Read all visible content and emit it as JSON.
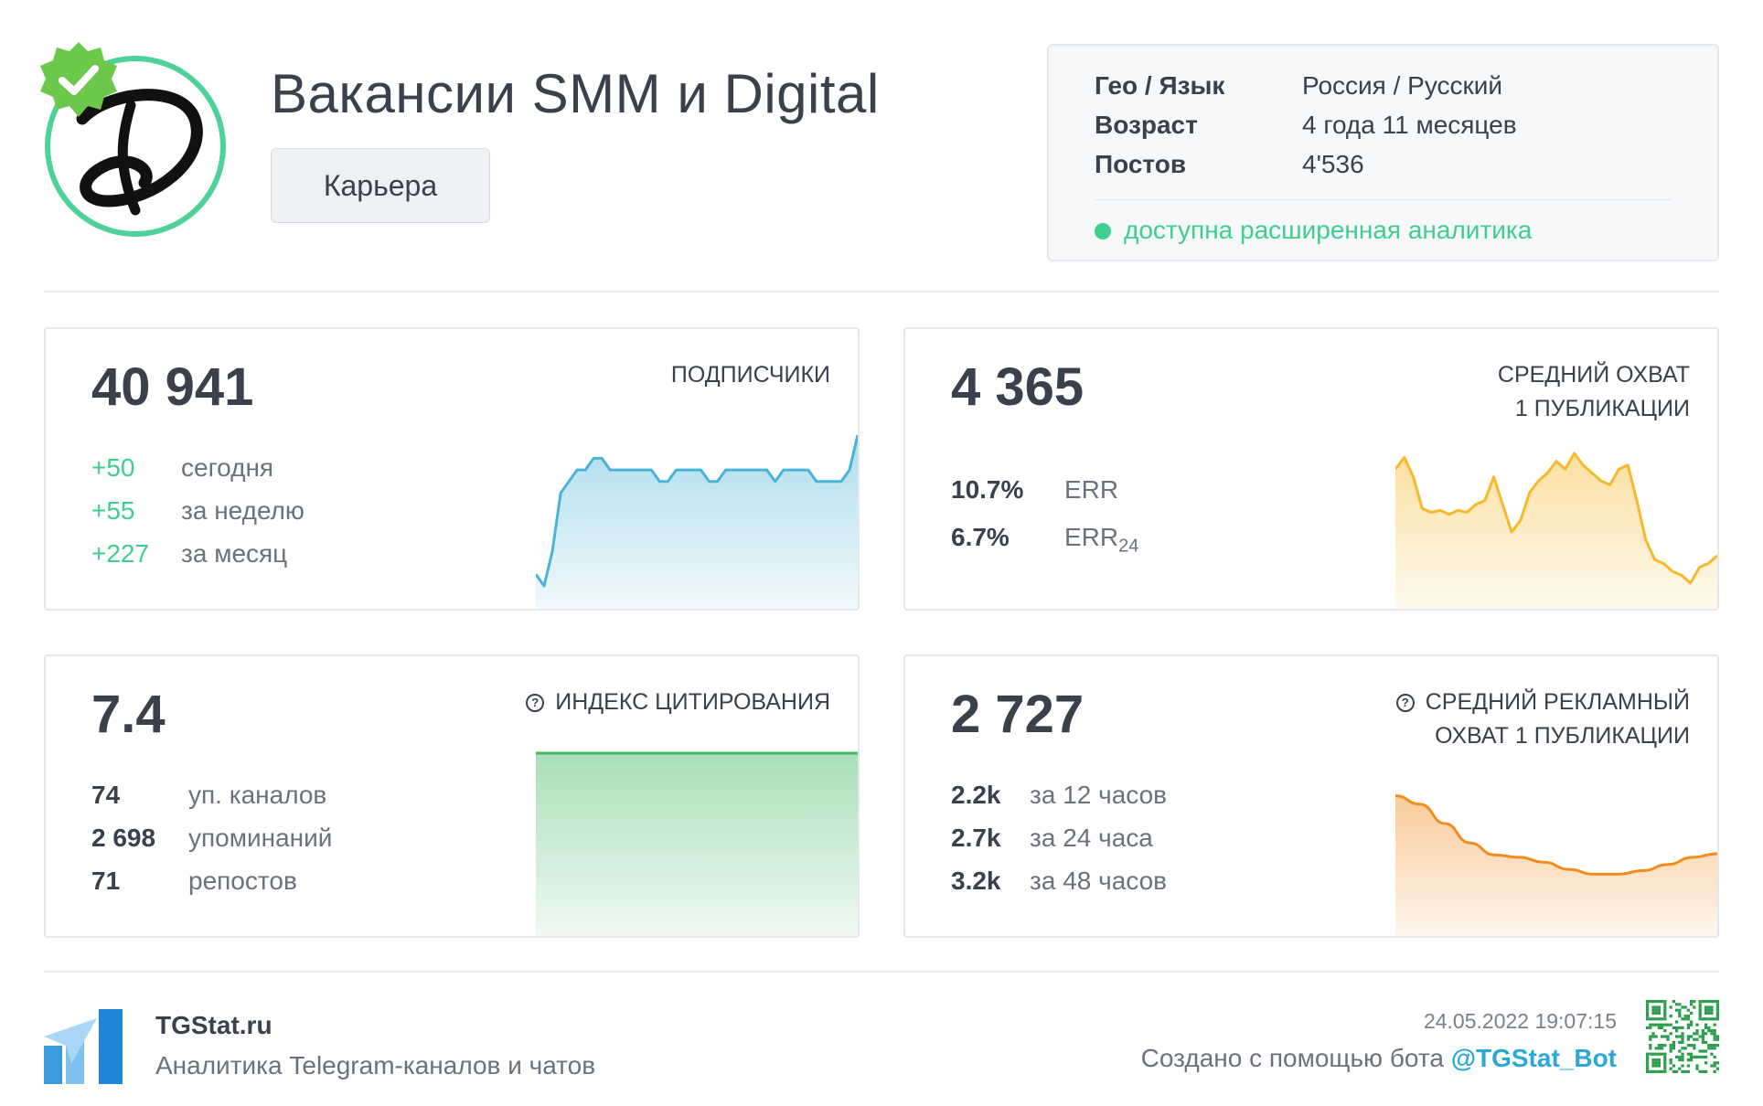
{
  "channel": {
    "title": "Вакансии SMM и Digital",
    "category": "Карьера",
    "avatar_icon": "channel-logo-icon",
    "verified_icon": "verified-badge-icon"
  },
  "info": {
    "geo_label": "Гео / Язык",
    "geo_value": "Россия / Русский",
    "age_label": "Возраст",
    "age_value": "4 года 11 месяцев",
    "posts_label": "Постов",
    "posts_value": "4'536",
    "analytics": "доступна расширенная аналитика",
    "analytics_color": "#3ecf8e"
  },
  "subscribers": {
    "value": "40 941",
    "label": "ПОДПИСЧИКИ",
    "rows": [
      {
        "num": "+50",
        "text": "сегодня"
      },
      {
        "num": "+55",
        "text": "за неделю"
      },
      {
        "num": "+227",
        "text": "за месяц"
      }
    ],
    "color": "#4ab3d8",
    "chart_series": [
      40929,
      40928,
      40931,
      40936,
      40937,
      40938,
      40938,
      40939,
      40939,
      40938,
      40938,
      40938,
      40938,
      40938,
      40938,
      40937,
      40937,
      40938,
      40938,
      40938,
      40938,
      40937,
      40937,
      40938,
      40938,
      40938,
      40938,
      40938,
      40938,
      40937,
      40938,
      40938,
      40938,
      40938,
      40937,
      40937,
      40937,
      40937,
      40938,
      40941
    ]
  },
  "reach": {
    "value": "4 365",
    "label_line1": "СРЕДНИЙ ОХВАТ",
    "label_line2": "1 ПУБЛИКАЦИИ",
    "err_value": "10.7%",
    "err_label": "ERR",
    "err24_value": "6.7%",
    "err24_label": "ERR",
    "err24_sub": "24",
    "color": "#f5b92c",
    "chart_series": [
      62,
      68,
      58,
      42,
      40,
      41,
      39,
      41,
      40,
      44,
      46,
      58,
      44,
      30,
      36,
      50,
      56,
      60,
      66,
      62,
      70,
      64,
      60,
      56,
      54,
      62,
      64,
      46,
      26,
      16,
      14,
      10,
      8,
      4,
      12,
      14,
      18
    ]
  },
  "citation": {
    "value": "7.4",
    "label": "ИНДЕКС ЦИТИРОВАНИЯ",
    "rows": [
      {
        "num": "74",
        "text": "уп. каналов"
      },
      {
        "num": "2 698",
        "text": "упоминаний"
      },
      {
        "num": "71",
        "text": "репостов"
      }
    ],
    "color": "#3fb861",
    "chart_series": [
      7.4,
      7.4
    ]
  },
  "ad_reach": {
    "value": "2 727",
    "label_line1": "СРЕДНИЙ РЕКЛАМНЫЙ",
    "label_line2": "ОХВАТ 1 ПУБЛИКАЦИИ",
    "rows": [
      {
        "num": "2.2k",
        "text": "за 12 часов"
      },
      {
        "num": "2.7k",
        "text": "за 24 часа"
      },
      {
        "num": "3.2k",
        "text": "за 48 часов"
      }
    ],
    "color": "#f28c1c",
    "chart_series": [
      95,
      88,
      72,
      56,
      46,
      44,
      40,
      34,
      30,
      30,
      33,
      38,
      44,
      47
    ]
  },
  "footer": {
    "site": "TGStat.ru",
    "description": "Аналитика Telegram-каналов и чатов",
    "date": "24.05.2022 19:07:15",
    "created_text": "Создано с помощью бота ",
    "bot": "@TGStat_Bot",
    "logo_icon": "tgstat-logo-icon",
    "qr_icon": "qr-code-icon"
  }
}
